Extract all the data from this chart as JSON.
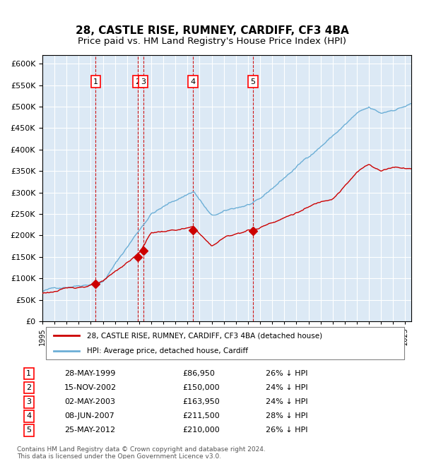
{
  "title": "28, CASTLE RISE, RUMNEY, CARDIFF, CF3 4BA",
  "subtitle": "Price paid vs. HM Land Registry's House Price Index (HPI)",
  "title_fontsize": 11,
  "subtitle_fontsize": 9.5,
  "background_color": "#dce9f5",
  "plot_bg_color": "#dce9f5",
  "hpi_color": "#6baed6",
  "price_color": "#cc0000",
  "sale_marker_color": "#cc0000",
  "vline_color": "#cc0000",
  "sales": [
    {
      "label": "1",
      "date_num": 1999.41,
      "price": 86950
    },
    {
      "label": "2",
      "date_num": 2002.87,
      "price": 150000
    },
    {
      "label": "3",
      "date_num": 2003.33,
      "price": 163950
    },
    {
      "label": "4",
      "date_num": 2007.44,
      "price": 211500
    },
    {
      "label": "5",
      "date_num": 2012.4,
      "price": 210000
    }
  ],
  "ylim": [
    0,
    620000
  ],
  "xlim": [
    1995.0,
    2025.5
  ],
  "ytick_step": 50000,
  "legend_entries": [
    "28, CASTLE RISE, RUMNEY, CARDIFF, CF3 4BA (detached house)",
    "HPI: Average price, detached house, Cardiff"
  ],
  "table_rows": [
    [
      "1",
      "28-MAY-1999",
      "£86,950",
      "26% ↓ HPI"
    ],
    [
      "2",
      "15-NOV-2002",
      "£150,000",
      "24% ↓ HPI"
    ],
    [
      "3",
      "02-MAY-2003",
      "£163,950",
      "24% ↓ HPI"
    ],
    [
      "4",
      "08-JUN-2007",
      "£211,500",
      "28% ↓ HPI"
    ],
    [
      "5",
      "25-MAY-2012",
      "£210,000",
      "26% ↓ HPI"
    ]
  ],
  "footnote": "Contains HM Land Registry data © Crown copyright and database right 2024.\nThis data is licensed under the Open Government Licence v3.0."
}
